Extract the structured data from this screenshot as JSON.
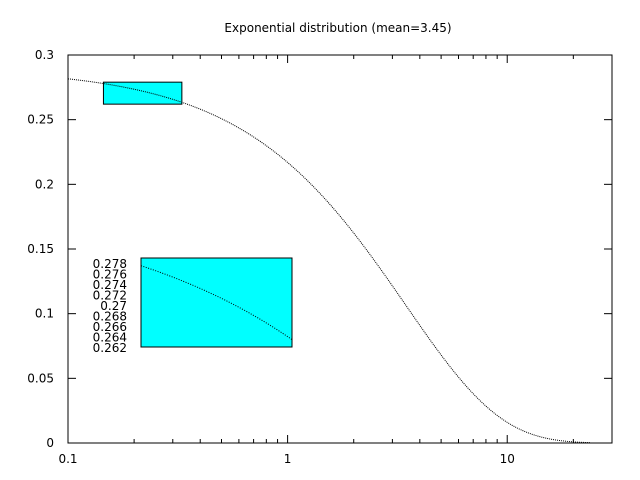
{
  "chart_data": {
    "type": "line",
    "title": "Exponential distribution (mean=3.45)",
    "xlabel": "",
    "ylabel": "",
    "x_scale": "log",
    "xlim": [
      0.1,
      30
    ],
    "ylim": [
      0,
      0.3
    ],
    "grid": false,
    "x_ticks": [
      {
        "value": 0.1,
        "label": "0.1"
      },
      {
        "value": 1,
        "label": "1"
      },
      {
        "value": 10,
        "label": "10"
      }
    ],
    "y_ticks": [
      {
        "value": 0,
        "label": "0"
      },
      {
        "value": 0.05,
        "label": "0.05"
      },
      {
        "value": 0.1,
        "label": "0.1"
      },
      {
        "value": 0.15,
        "label": "0.15"
      },
      {
        "value": 0.2,
        "label": "0.2"
      },
      {
        "value": 0.25,
        "label": "0.25"
      },
      {
        "value": 0.3,
        "label": "0.3"
      }
    ],
    "series": [
      {
        "mean": 3.45,
        "x_range": [
          0.1,
          24
        ],
        "style": "dotted-line",
        "color": "#000000"
      }
    ],
    "zoom_region": {
      "x": [
        0.145,
        0.33
      ],
      "y": [
        0.262,
        0.279
      ],
      "fill": "#00ffff"
    },
    "inset": {
      "fill": "#00ffff",
      "x_range": [
        0.15,
        0.33
      ],
      "y_range": [
        0.262,
        0.279
      ],
      "y_tick_labels": [
        "0.278",
        "0.276",
        "0.274",
        "0.272",
        "0.27",
        "0.268",
        "0.266",
        "0.264",
        "0.262"
      ]
    }
  }
}
